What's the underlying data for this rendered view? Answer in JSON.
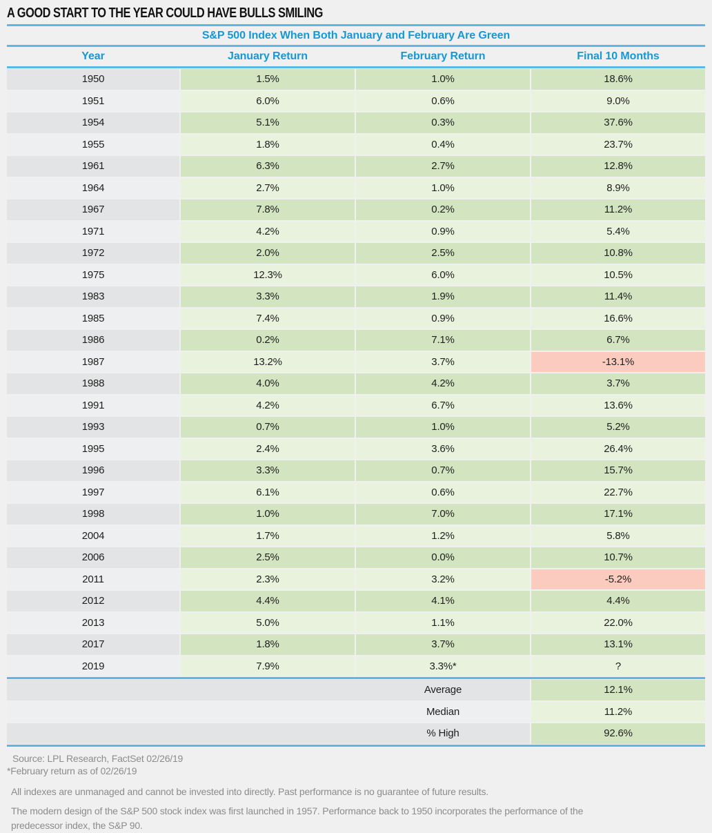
{
  "title": "A GOOD START TO THE YEAR COULD HAVE BULLS SMILING",
  "table": {
    "subtitle": "S&P 500 Index When Both January and February Are Green",
    "columns": [
      "Year",
      "January Return",
      "February Return",
      "Final 10 Months"
    ],
    "rows": [
      {
        "year": "1950",
        "jan": "1.5%",
        "feb": "1.0%",
        "final": "18.6%"
      },
      {
        "year": "1951",
        "jan": "6.0%",
        "feb": "0.6%",
        "final": "9.0%"
      },
      {
        "year": "1954",
        "jan": "5.1%",
        "feb": "0.3%",
        "final": "37.6%"
      },
      {
        "year": "1955",
        "jan": "1.8%",
        "feb": "0.4%",
        "final": "23.7%"
      },
      {
        "year": "1961",
        "jan": "6.3%",
        "feb": "2.7%",
        "final": "12.8%"
      },
      {
        "year": "1964",
        "jan": "2.7%",
        "feb": "1.0%",
        "final": "8.9%"
      },
      {
        "year": "1967",
        "jan": "7.8%",
        "feb": "0.2%",
        "final": "11.2%"
      },
      {
        "year": "1971",
        "jan": "4.2%",
        "feb": "0.9%",
        "final": "5.4%"
      },
      {
        "year": "1972",
        "jan": "2.0%",
        "feb": "2.5%",
        "final": "10.8%"
      },
      {
        "year": "1975",
        "jan": "12.3%",
        "feb": "6.0%",
        "final": "10.5%"
      },
      {
        "year": "1983",
        "jan": "3.3%",
        "feb": "1.9%",
        "final": "11.4%"
      },
      {
        "year": "1985",
        "jan": "7.4%",
        "feb": "0.9%",
        "final": "16.6%"
      },
      {
        "year": "1986",
        "jan": "0.2%",
        "feb": "7.1%",
        "final": "6.7%"
      },
      {
        "year": "1987",
        "jan": "13.2%",
        "feb": "3.7%",
        "final": "-13.1%",
        "final_negative": true
      },
      {
        "year": "1988",
        "jan": "4.0%",
        "feb": "4.2%",
        "final": "3.7%"
      },
      {
        "year": "1991",
        "jan": "4.2%",
        "feb": "6.7%",
        "final": "13.6%"
      },
      {
        "year": "1993",
        "jan": "0.7%",
        "feb": "1.0%",
        "final": "5.2%"
      },
      {
        "year": "1995",
        "jan": "2.4%",
        "feb": "3.6%",
        "final": "26.4%"
      },
      {
        "year": "1996",
        "jan": "3.3%",
        "feb": "0.7%",
        "final": "15.7%"
      },
      {
        "year": "1997",
        "jan": "6.1%",
        "feb": "0.6%",
        "final": "22.7%"
      },
      {
        "year": "1998",
        "jan": "1.0%",
        "feb": "7.0%",
        "final": "17.1%"
      },
      {
        "year": "2004",
        "jan": "1.7%",
        "feb": "1.2%",
        "final": "5.8%"
      },
      {
        "year": "2006",
        "jan": "2.5%",
        "feb": "0.0%",
        "final": "10.7%"
      },
      {
        "year": "2011",
        "jan": "2.3%",
        "feb": "3.2%",
        "final": "-5.2%",
        "final_negative": true
      },
      {
        "year": "2012",
        "jan": "4.4%",
        "feb": "4.1%",
        "final": "4.4%"
      },
      {
        "year": "2013",
        "jan": "5.0%",
        "feb": "1.1%",
        "final": "22.0%"
      },
      {
        "year": "2017",
        "jan": "1.8%",
        "feb": "3.7%",
        "final": "13.1%"
      },
      {
        "year": "2019",
        "jan": "7.9%",
        "feb": "3.3%*",
        "final": "?"
      }
    ],
    "summary": [
      {
        "label": "Average",
        "value": "12.1%"
      },
      {
        "label": "Median",
        "value": "11.2%"
      },
      {
        "label": "% High",
        "value": "92.6%"
      }
    ]
  },
  "footer": {
    "source": "Source: LPL Research, FactSet   02/26/19",
    "footnote": "*February return as of 02/26/19",
    "disclaimer1": "All indexes are unmanaged and cannot be invested into directly. Past performance is no guarantee of future results.",
    "disclaimer2": "The modern design of the S&P 500 stock index was first launched in 1957. Performance back to 1950 incorporates the performance of the predecessor index, the S&P 90."
  },
  "colors": {
    "accent_blue_text": "#1598d6",
    "rule_blue": "#5ab8e6",
    "green_dark": "#d3e5c0",
    "green_light": "#e9f2dc",
    "gray_dark": "#e3e4e6",
    "gray_light": "#eeeff0",
    "negative_pink": "#fccbc0",
    "page_background": "#f0f0f0",
    "footer_text": "#8c8c8c"
  },
  "chart_data": {
    "type": "table",
    "title": "S&P 500 Index When Both January and February Are Green",
    "columns": [
      "Year",
      "January Return (%)",
      "February Return (%)",
      "Final 10 Months (%)"
    ],
    "rows": [
      [
        1950,
        1.5,
        1.0,
        18.6
      ],
      [
        1951,
        6.0,
        0.6,
        9.0
      ],
      [
        1954,
        5.1,
        0.3,
        37.6
      ],
      [
        1955,
        1.8,
        0.4,
        23.7
      ],
      [
        1961,
        6.3,
        2.7,
        12.8
      ],
      [
        1964,
        2.7,
        1.0,
        8.9
      ],
      [
        1967,
        7.8,
        0.2,
        11.2
      ],
      [
        1971,
        4.2,
        0.9,
        5.4
      ],
      [
        1972,
        2.0,
        2.5,
        10.8
      ],
      [
        1975,
        12.3,
        6.0,
        10.5
      ],
      [
        1983,
        3.3,
        1.9,
        11.4
      ],
      [
        1985,
        7.4,
        0.9,
        16.6
      ],
      [
        1986,
        0.2,
        7.1,
        6.7
      ],
      [
        1987,
        13.2,
        3.7,
        -13.1
      ],
      [
        1988,
        4.0,
        4.2,
        3.7
      ],
      [
        1991,
        4.2,
        6.7,
        13.6
      ],
      [
        1993,
        0.7,
        1.0,
        5.2
      ],
      [
        1995,
        2.4,
        3.6,
        26.4
      ],
      [
        1996,
        3.3,
        0.7,
        15.7
      ],
      [
        1997,
        6.1,
        0.6,
        22.7
      ],
      [
        1998,
        1.0,
        7.0,
        17.1
      ],
      [
        2004,
        1.7,
        1.2,
        5.8
      ],
      [
        2006,
        2.5,
        0.0,
        10.7
      ],
      [
        2011,
        2.3,
        3.2,
        -5.2
      ],
      [
        2012,
        4.4,
        4.1,
        4.4
      ],
      [
        2013,
        5.0,
        1.1,
        22.0
      ],
      [
        2017,
        1.8,
        3.7,
        13.1
      ],
      [
        2019,
        7.9,
        3.3,
        null
      ]
    ],
    "notes": [
      "2019 February return is as of 02/26/19",
      "2019 Final 10 Months unknown (shown as ?)"
    ],
    "summary": {
      "average_final_10_months_pct": 12.1,
      "median_final_10_months_pct": 11.2,
      "percent_higher": 92.6
    }
  }
}
